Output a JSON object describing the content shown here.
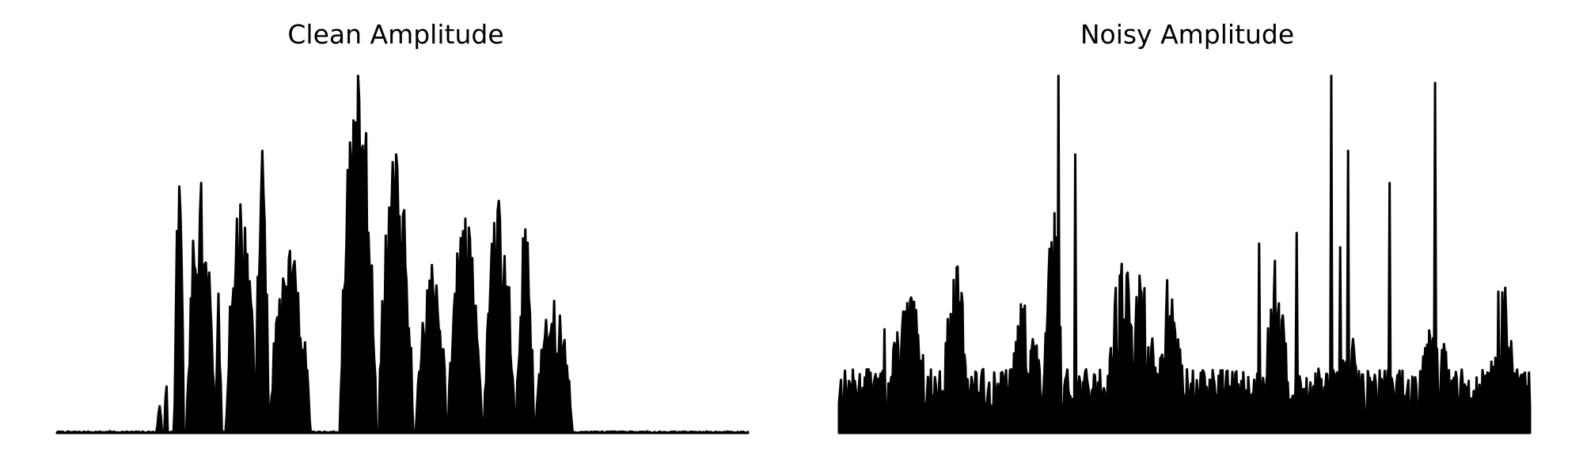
{
  "chart_data": [
    {
      "type": "area",
      "title": "Clean Amplitude",
      "xlabel": "",
      "ylabel": "",
      "axes_visible": false,
      "grid": false,
      "color": "#000000",
      "x_range": [
        0,
        1
      ],
      "ylim": [
        0,
        1
      ],
      "samples": 600,
      "segments": [
        {
          "start": 0.073,
          "end": 0.08,
          "peak": 0.005
        },
        {
          "start": 0.145,
          "end": 0.152,
          "peak": 0.075
        },
        {
          "start": 0.156,
          "end": 0.16,
          "peak": 0.13
        },
        {
          "start": 0.17,
          "end": 0.183,
          "peak": 0.69
        },
        {
          "start": 0.188,
          "end": 0.228,
          "peak": 0.7
        },
        {
          "start": 0.23,
          "end": 0.238,
          "peak": 0.39
        },
        {
          "start": 0.245,
          "end": 0.287,
          "peak": 0.64
        },
        {
          "start": 0.288,
          "end": 0.306,
          "peak": 0.79
        },
        {
          "start": 0.308,
          "end": 0.366,
          "peak": 0.51
        },
        {
          "start": 0.41,
          "end": 0.462,
          "peak": 1.0
        },
        {
          "start": 0.466,
          "end": 0.515,
          "peak": 0.78
        },
        {
          "start": 0.52,
          "end": 0.564,
          "peak": 0.47
        },
        {
          "start": 0.566,
          "end": 0.615,
          "peak": 0.6
        },
        {
          "start": 0.618,
          "end": 0.662,
          "peak": 0.65
        },
        {
          "start": 0.665,
          "end": 0.69,
          "peak": 0.57
        },
        {
          "start": 0.693,
          "end": 0.745,
          "peak": 0.37
        }
      ]
    },
    {
      "type": "area",
      "title": "Noisy Amplitude",
      "xlabel": "",
      "ylabel": "",
      "axes_visible": false,
      "grid": false,
      "color": "#000000",
      "x_range": [
        0,
        1
      ],
      "ylim": [
        0,
        1
      ],
      "samples": 700,
      "baseline": 0.18,
      "clusters": [
        {
          "center": 0.1,
          "width": 0.03,
          "peak": 0.4
        },
        {
          "center": 0.17,
          "width": 0.02,
          "peak": 0.48
        },
        {
          "center": 0.27,
          "width": 0.025,
          "peak": 0.4
        },
        {
          "center": 0.31,
          "width": 0.012,
          "peak": 0.65
        },
        {
          "center": 0.41,
          "width": 0.02,
          "peak": 0.55
        },
        {
          "center": 0.44,
          "width": 0.018,
          "peak": 0.5
        },
        {
          "center": 0.48,
          "width": 0.018,
          "peak": 0.48
        },
        {
          "center": 0.63,
          "width": 0.02,
          "peak": 0.5
        },
        {
          "center": 0.74,
          "width": 0.02,
          "peak": 0.28
        },
        {
          "center": 0.86,
          "width": 0.03,
          "peak": 0.35
        },
        {
          "center": 0.96,
          "width": 0.018,
          "peak": 0.44
        }
      ],
      "spikes": [
        {
          "x": 0.317,
          "value": 1.0
        },
        {
          "x": 0.342,
          "value": 0.78
        },
        {
          "x": 0.713,
          "value": 1.0
        },
        {
          "x": 0.737,
          "value": 0.79
        },
        {
          "x": 0.797,
          "value": 0.7
        },
        {
          "x": 0.863,
          "value": 0.98
        },
        {
          "x": 0.662,
          "value": 0.56
        },
        {
          "x": 0.726,
          "value": 0.52
        },
        {
          "x": 0.608,
          "value": 0.53
        },
        {
          "x": 0.066,
          "value": 0.29
        }
      ]
    }
  ]
}
